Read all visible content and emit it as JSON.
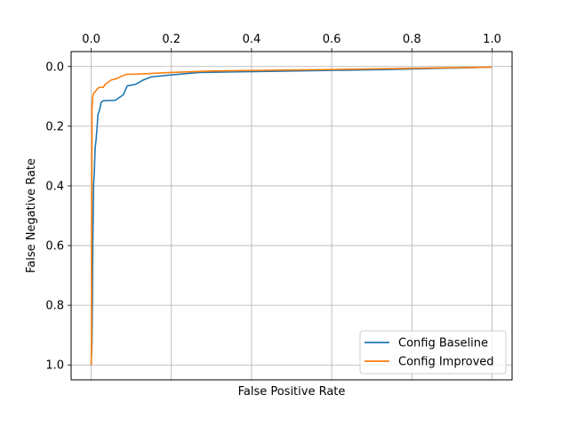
{
  "chart_data": {
    "type": "line",
    "title": "",
    "xlabel": "False Positive Rate",
    "ylabel": "False Negative Rate",
    "xlim": [
      -0.05,
      1.05
    ],
    "ylim": [
      1.05,
      -0.05
    ],
    "x_axis_position": "top",
    "y_inverted": true,
    "x_ticks": [
      0.0,
      0.2,
      0.4,
      0.6,
      0.8,
      1.0
    ],
    "x_tick_labels": [
      "0.0",
      "0.2",
      "0.4",
      "0.6",
      "0.8",
      "1.0"
    ],
    "y_ticks": [
      0.0,
      0.2,
      0.4,
      0.6,
      0.8,
      1.0
    ],
    "y_tick_labels": [
      "0.0",
      "0.2",
      "0.4",
      "0.6",
      "0.8",
      "1.0"
    ],
    "grid": true,
    "legend_position": "bottom-right",
    "series": [
      {
        "name": "Config Baseline",
        "color": "#1f77b4",
        "x": [
          0.0,
          0.002,
          0.003,
          0.004,
          0.005,
          0.006,
          0.008,
          0.01,
          0.012,
          0.015,
          0.017,
          0.02,
          0.025,
          0.03,
          0.045,
          0.06,
          0.08,
          0.09,
          0.11,
          0.13,
          0.15,
          0.2,
          0.27,
          0.5,
          0.75,
          1.0
        ],
        "y": [
          1.0,
          0.92,
          0.8,
          0.6,
          0.5,
          0.4,
          0.35,
          0.27,
          0.25,
          0.2,
          0.16,
          0.15,
          0.12,
          0.115,
          0.114,
          0.113,
          0.095,
          0.065,
          0.06,
          0.045,
          0.035,
          0.028,
          0.02,
          0.015,
          0.01,
          0.002
        ]
      },
      {
        "name": "Config Improved",
        "color": "#ff7f0e",
        "x": [
          0.0,
          0.001,
          0.001,
          0.002,
          0.002,
          0.003,
          0.004,
          0.006,
          0.01,
          0.015,
          0.02,
          0.03,
          0.035,
          0.05,
          0.065,
          0.08,
          0.09,
          0.12,
          0.2,
          0.3,
          0.6,
          0.85,
          1.0
        ],
        "y": [
          1.0,
          0.92,
          0.6,
          0.3,
          0.15,
          0.12,
          0.1,
          0.09,
          0.085,
          0.075,
          0.07,
          0.07,
          0.06,
          0.045,
          0.04,
          0.03,
          0.026,
          0.025,
          0.02,
          0.015,
          0.01,
          0.005,
          0.002
        ]
      }
    ]
  }
}
